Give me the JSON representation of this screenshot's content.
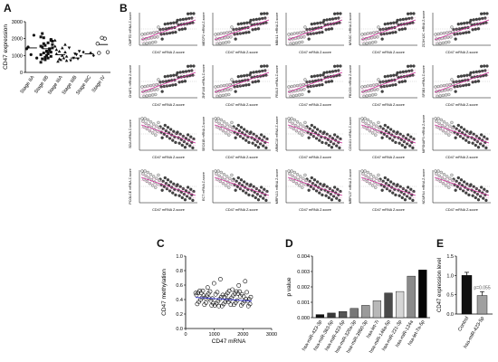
{
  "panels": {
    "A": "A",
    "B": "B",
    "C": "C",
    "D": "D",
    "E": "E"
  },
  "chart_data": [
    {
      "panel": "A",
      "type": "scatter",
      "ylabel": "CD47 expression",
      "categories": [
        "Stage IIA",
        "Stage IIB",
        "Stage IIIA",
        "Stage IIIB",
        "Stage IIIC",
        "Stage IV"
      ],
      "yticks": [
        "0",
        "1000",
        "2000",
        "3000"
      ],
      "ylim": [
        0,
        3000
      ],
      "means": [
        1450,
        1400,
        1050,
        850,
        1100,
        1650
      ],
      "groups": [
        [
          1400,
          850,
          2200,
          1050,
          1500
        ],
        [
          2100,
          1900,
          1750,
          1600,
          1500,
          1450,
          1350,
          1250,
          1150,
          1050,
          950,
          850,
          750,
          2300,
          1850,
          1300,
          1000,
          1700,
          1550,
          1200,
          1100,
          900,
          800,
          1650,
          1400,
          1250,
          2050,
          600,
          1950,
          1150
        ],
        [
          1900,
          1650,
          1450,
          1250,
          1100,
          950,
          850,
          750,
          650,
          1550,
          1200,
          1000,
          800,
          1350,
          700
        ],
        [
          1450,
          1250,
          1050,
          850,
          700,
          950,
          800,
          1100
        ],
        [
          1200,
          1000,
          1150
        ],
        [
          1700,
          1200,
          2000,
          2050,
          1150
        ]
      ]
    },
    {
      "panel": "B",
      "type": "scatter",
      "xlabel": "CD47 mRNA Z-score",
      "subplots": [
        {
          "ylabel": "CMPTD mRNA Z-score",
          "trend": "up"
        },
        {
          "ylabel": "MECP2 mRNA Z-score",
          "trend": "up"
        },
        {
          "ylabel": "MBNL1 mRNA Z-score",
          "trend": "up"
        },
        {
          "ylabel": "NFASC mRNA Z-score",
          "trend": "up"
        },
        {
          "ylabel": "ZC3H12C mRNA Z-score",
          "trend": "up"
        },
        {
          "ylabel": "CHAF1 mRNA Z-score",
          "trend": "up"
        },
        {
          "ylabel": "ZNF148 mRNA Z-score",
          "trend": "up"
        },
        {
          "ylabel": "FBXL5 mRNA Z-score",
          "trend": "up"
        },
        {
          "ylabel": "FBXO3 mRNA Z-score",
          "trend": "up"
        },
        {
          "ylabel": "SF3B3 mRNA Z-score",
          "trend": "up"
        },
        {
          "ylabel": "SDA mRNA Z-score",
          "trend": "down"
        },
        {
          "ylabel": "SEC61B mRNA Z-score",
          "trend": "down"
        },
        {
          "ylabel": "ARMC10 mRNA Z-score",
          "trend": "down"
        },
        {
          "ylabel": "COX4I1 mRNA Z-score",
          "trend": "down"
        },
        {
          "ylabel": "NIPSNAP3 mRNA Z-score",
          "trend": "down"
        },
        {
          "ylabel": "PCOLCE mRNA Z-score",
          "trend": "down"
        },
        {
          "ylabel": "ECT mRNA Z-score",
          "trend": "down"
        },
        {
          "ylabel": "MRPL13 mRNA Z-score",
          "trend": "down"
        },
        {
          "ylabel": "MRPL37 mRNA Z-score",
          "trend": "down"
        },
        {
          "ylabel": "NDUFA4 mRNA Z-score",
          "trend": "down"
        }
      ]
    },
    {
      "panel": "C",
      "type": "scatter",
      "xlabel": "CD47 mRNA",
      "ylabel": "CD47 methylation",
      "xticks": [
        "0",
        "1000",
        "2000",
        "3000"
      ],
      "yticks": [
        "0.0",
        "0.2",
        "0.4",
        "0.6",
        "0.8",
        "1.0"
      ],
      "xlim": [
        0,
        3000
      ],
      "ylim": [
        0,
        1.0
      ]
    },
    {
      "panel": "D",
      "type": "bar",
      "ylabel": "p value",
      "yticks": [
        "0.000",
        "0.001",
        "0.002",
        "0.003",
        "0.004"
      ],
      "ylim": [
        0,
        0.004
      ],
      "categories": [
        "hsa-miR-423-3p",
        "hsa-miR-363-5p",
        "hsa-miR-423-5p",
        "hsa-miR-320a-3p",
        "hsa-miR-3960-3p",
        "hsa-let-7i",
        "hsa-miR-146a-5p",
        "hsa-miR-221-3p",
        "hsa-miR-124a",
        "hsa-let-7a-5p"
      ],
      "values": [
        0.0002,
        0.0003,
        0.0004,
        0.0006,
        0.0008,
        0.0011,
        0.0016,
        0.0017,
        0.0027,
        0.0031
      ],
      "colors": [
        "#111111",
        "#3a3a3a",
        "#555555",
        "#777777",
        "#9a9a9a",
        "#b8b8b8",
        "#4a4a4a",
        "#d6d6d6",
        "#8a8a8a",
        "#050505"
      ]
    },
    {
      "panel": "E",
      "type": "bar",
      "ylabel": "CD47 expression level",
      "yticks": [
        "0.0",
        "0.5",
        "1.0",
        "1.5"
      ],
      "ylim": [
        0,
        1.5
      ],
      "categories": [
        "Control",
        "hsa-miR-423-5p"
      ],
      "values": [
        1.0,
        0.48
      ],
      "errors": [
        0.08,
        0.1
      ],
      "colors": [
        "#111111",
        "#a0a0a0"
      ],
      "annotation": "p=0.055"
    }
  ]
}
